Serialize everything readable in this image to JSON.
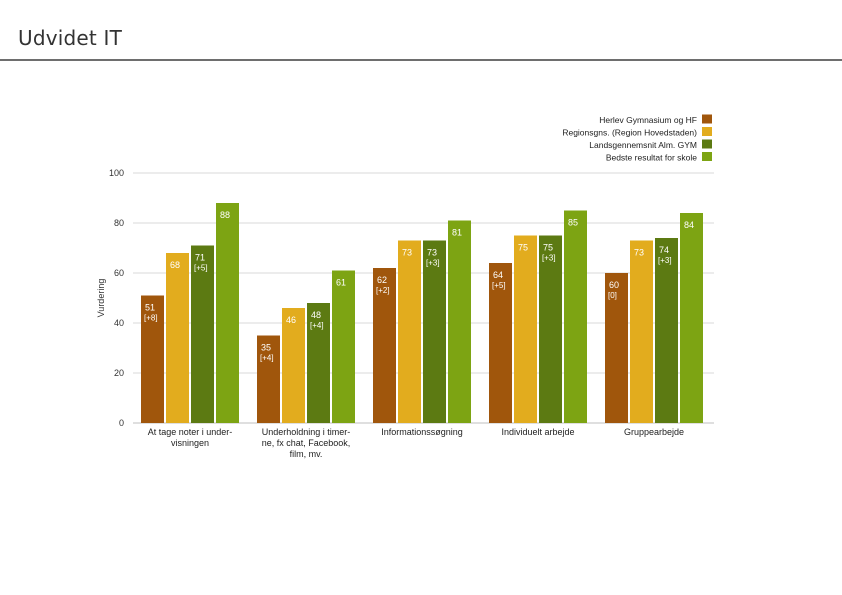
{
  "page": {
    "title": "Udvidet IT"
  },
  "chart_data": {
    "type": "bar",
    "title": "",
    "xlabel": "",
    "ylabel": "Vurdering",
    "ylim": [
      0,
      100
    ],
    "yticks": [
      "0",
      "20",
      "40",
      "60",
      "80",
      "100"
    ],
    "grid": true,
    "legend_position": "top-right",
    "categories": [
      [
        "At tage noter i under-",
        "visningen"
      ],
      [
        "Underholdning i timer-",
        "ne, fx chat, Facebook,",
        "film, mv."
      ],
      [
        "Informationssøgning"
      ],
      [
        "Individuelt arbejde"
      ],
      [
        "Gruppearbejde"
      ]
    ],
    "series": [
      {
        "name": "Herlev Gymnasium og HF",
        "color": "#a0560c",
        "values": [
          51,
          35,
          62,
          64,
          60
        ],
        "labels": [
          "51",
          "35",
          "62",
          "64",
          "60"
        ],
        "changes": [
          "[+8]",
          "[+4]",
          "[+2]",
          "[+5]",
          "[0]"
        ]
      },
      {
        "name": "Regionsgns. (Region Hovedstaden)",
        "color": "#e2ac1e",
        "values": [
          68,
          46,
          73,
          75,
          73
        ],
        "labels": [
          "68",
          "46",
          "73",
          "75",
          "73"
        ],
        "changes": [
          "",
          "",
          "",
          "",
          ""
        ]
      },
      {
        "name": "Landsgennemsnit Alm. GYM",
        "color": "#5c7a12",
        "values": [
          71,
          48,
          73,
          75,
          74
        ],
        "labels": [
          "71",
          "48",
          "73",
          "75",
          "74"
        ],
        "changes": [
          "[+5]",
          "[+4]",
          "[+3]",
          "[+3]",
          "[+3]"
        ]
      },
      {
        "name": "Bedste resultat for skole",
        "color": "#7da413",
        "values": [
          88,
          61,
          81,
          85,
          84
        ],
        "labels": [
          "88",
          "61",
          "81",
          "85",
          "84"
        ],
        "changes": [
          "",
          "",
          "",
          "",
          ""
        ]
      }
    ]
  }
}
